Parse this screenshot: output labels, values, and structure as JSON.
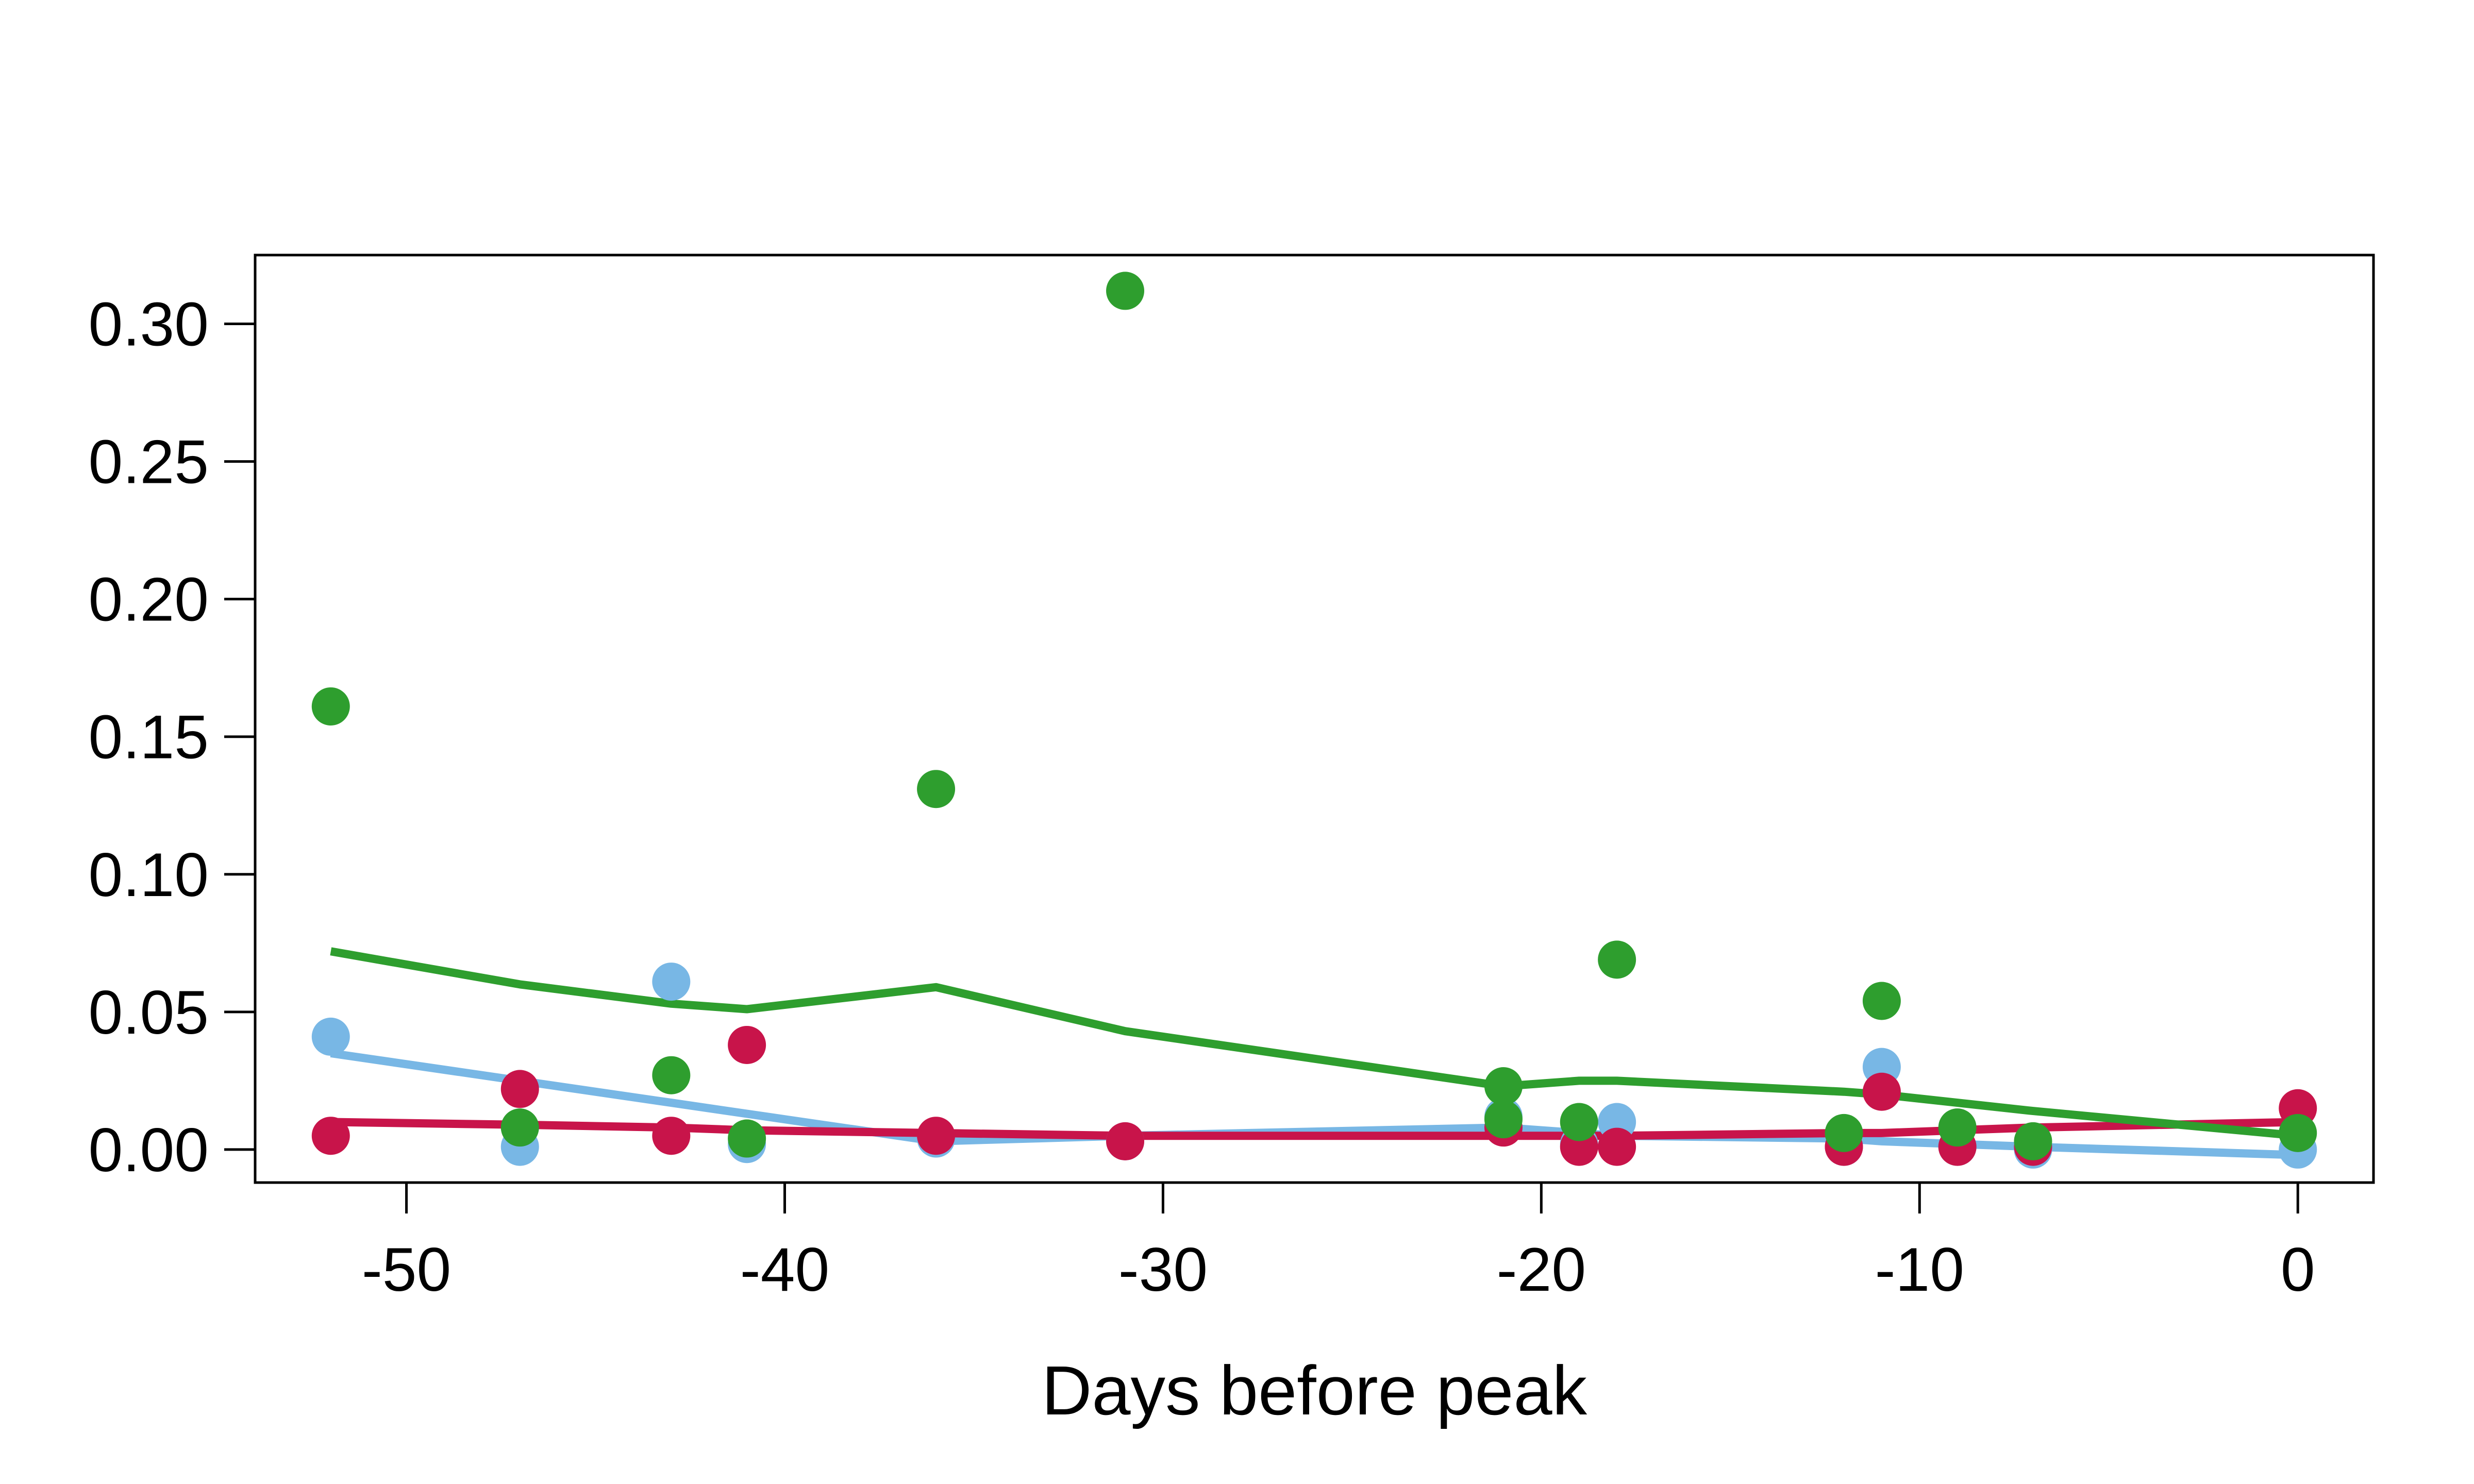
{
  "chart_data": {
    "type": "scatter",
    "title": "",
    "xlabel": "Days before peak",
    "ylabel": "",
    "xlim": [
      -54,
      2
    ],
    "ylim": [
      -0.012,
      0.325
    ],
    "xticks": [
      -50,
      -40,
      -30,
      -20,
      -10,
      0
    ],
    "yticks": [
      0.0,
      0.05,
      0.1,
      0.15,
      0.2,
      0.25,
      0.3
    ],
    "ytick_labels": [
      "0.00",
      "0.05",
      "0.10",
      "0.15",
      "0.20",
      "0.25",
      "0.30"
    ],
    "grid": false,
    "legend": "none",
    "series": [
      {
        "color": "#78b7e5",
        "points": [
          {
            "x": -52,
            "y": 0.041
          },
          {
            "x": -47,
            "y": 0.001
          },
          {
            "x": -43,
            "y": 0.061
          },
          {
            "x": -41,
            "y": 0.002
          },
          {
            "x": -36,
            "y": 0.004
          },
          {
            "x": -31,
            "y": 0.003
          },
          {
            "x": -21,
            "y": 0.012
          },
          {
            "x": -19,
            "y": 0.002
          },
          {
            "x": -18,
            "y": 0.01
          },
          {
            "x": -12,
            "y": 0.001
          },
          {
            "x": -11,
            "y": 0.03
          },
          {
            "x": -9,
            "y": 0.001
          },
          {
            "x": -7,
            "y": 0.0
          },
          {
            "x": 0,
            "y": 0.0
          }
        ],
        "line": [
          {
            "x": -52,
            "y": 0.035
          },
          {
            "x": -47,
            "y": 0.025
          },
          {
            "x": -43,
            "y": 0.017
          },
          {
            "x": -41,
            "y": 0.013
          },
          {
            "x": -36,
            "y": 0.003
          },
          {
            "x": -31,
            "y": 0.005
          },
          {
            "x": -21,
            "y": 0.008
          },
          {
            "x": -19,
            "y": 0.006
          },
          {
            "x": -18,
            "y": 0.005
          },
          {
            "x": -12,
            "y": 0.004
          },
          {
            "x": -11,
            "y": 0.003
          },
          {
            "x": -9,
            "y": 0.002
          },
          {
            "x": -7,
            "y": 0.001
          },
          {
            "x": 0,
            "y": -0.002
          }
        ]
      },
      {
        "color": "#c8144a",
        "points": [
          {
            "x": -52,
            "y": 0.005
          },
          {
            "x": -47,
            "y": 0.022
          },
          {
            "x": -43,
            "y": 0.005
          },
          {
            "x": -41,
            "y": 0.038
          },
          {
            "x": -36,
            "y": 0.005
          },
          {
            "x": -31,
            "y": 0.003
          },
          {
            "x": -21,
            "y": 0.008
          },
          {
            "x": -19,
            "y": 0.001
          },
          {
            "x": -18,
            "y": 0.001
          },
          {
            "x": -12,
            "y": 0.001
          },
          {
            "x": -11,
            "y": 0.021
          },
          {
            "x": -9,
            "y": 0.001
          },
          {
            "x": -7,
            "y": 0.001
          },
          {
            "x": 0,
            "y": 0.015
          }
        ],
        "line": [
          {
            "x": -52,
            "y": 0.01
          },
          {
            "x": -47,
            "y": 0.009
          },
          {
            "x": -43,
            "y": 0.008
          },
          {
            "x": -41,
            "y": 0.007
          },
          {
            "x": -36,
            "y": 0.006
          },
          {
            "x": -31,
            "y": 0.005
          },
          {
            "x": -21,
            "y": 0.005
          },
          {
            "x": -19,
            "y": 0.005
          },
          {
            "x": -18,
            "y": 0.005
          },
          {
            "x": -12,
            "y": 0.006
          },
          {
            "x": -11,
            "y": 0.006
          },
          {
            "x": -9,
            "y": 0.007
          },
          {
            "x": -7,
            "y": 0.008
          },
          {
            "x": 0,
            "y": 0.01
          }
        ]
      },
      {
        "color": "#2e9e2e",
        "points": [
          {
            "x": -52,
            "y": 0.161
          },
          {
            "x": -47,
            "y": 0.008
          },
          {
            "x": -43,
            "y": 0.027
          },
          {
            "x": -41,
            "y": 0.004
          },
          {
            "x": -36,
            "y": 0.131
          },
          {
            "x": -31,
            "y": 0.312
          },
          {
            "x": -21,
            "y": 0.023
          },
          {
            "x": -21,
            "y": 0.011
          },
          {
            "x": -19,
            "y": 0.01
          },
          {
            "x": -18,
            "y": 0.069
          },
          {
            "x": -12,
            "y": 0.006
          },
          {
            "x": -11,
            "y": 0.054
          },
          {
            "x": -9,
            "y": 0.008
          },
          {
            "x": -7,
            "y": 0.003
          },
          {
            "x": 0,
            "y": 0.006
          }
        ],
        "line": [
          {
            "x": -52,
            "y": 0.072
          },
          {
            "x": -47,
            "y": 0.06
          },
          {
            "x": -43,
            "y": 0.053
          },
          {
            "x": -41,
            "y": 0.051
          },
          {
            "x": -36,
            "y": 0.059
          },
          {
            "x": -31,
            "y": 0.043
          },
          {
            "x": -21,
            "y": 0.023
          },
          {
            "x": -19,
            "y": 0.025
          },
          {
            "x": -18,
            "y": 0.025
          },
          {
            "x": -12,
            "y": 0.021
          },
          {
            "x": -11,
            "y": 0.02
          },
          {
            "x": -9,
            "y": 0.017
          },
          {
            "x": -7,
            "y": 0.014
          },
          {
            "x": 0,
            "y": 0.005
          }
        ]
      }
    ]
  }
}
